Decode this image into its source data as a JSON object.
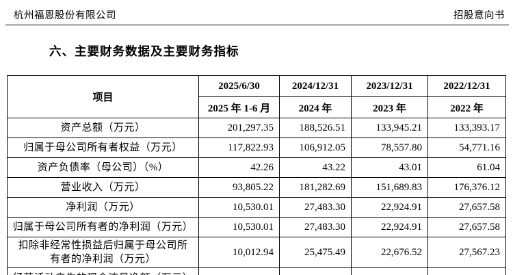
{
  "page_header": {
    "company_name": "杭州福恩股份有限公司",
    "doc_type": "招股意向书"
  },
  "section_title": "六、主要财务数据及主要财务指标",
  "financial_table": {
    "item_column_header": "项目",
    "period_headers": [
      {
        "date": "2025/6/30",
        "period": "2025 年 1-6 月"
      },
      {
        "date": "2024/12/31",
        "period": "2024 年"
      },
      {
        "date": "2023/12/31",
        "period": "2023 年"
      },
      {
        "date": "2022/12/31",
        "period": "2022 年"
      }
    ],
    "rows": [
      {
        "label": "资产总额（万元）",
        "values": [
          "201,297.35",
          "188,526.51",
          "133,945.21",
          "133,393.17"
        ]
      },
      {
        "label": "归属于母公司所有者权益（万元）",
        "values": [
          "117,822.93",
          "106,912.05",
          "78,557.80",
          "54,771.16"
        ]
      },
      {
        "label": "资产负债率（母公司）（%）",
        "values": [
          "42.26",
          "43.22",
          "43.01",
          "61.04"
        ]
      },
      {
        "label": "营业收入（万元）",
        "values": [
          "93,805.22",
          "181,282.69",
          "151,689.83",
          "176,376.12"
        ]
      },
      {
        "label": "净利润（万元）",
        "values": [
          "10,530.01",
          "27,483.30",
          "22,924.91",
          "27,657.58"
        ]
      },
      {
        "label": "归属于母公司所有者的净利润（万元）",
        "values": [
          "10,530.01",
          "27,483.30",
          "22,924.91",
          "27,657.58"
        ]
      },
      {
        "label": "扣除非经常性损益后归属于母公司所\n有者的净利润（万元）",
        "tall": true,
        "values": [
          "10,012.94",
          "25,475.49",
          "22,676.52",
          "27,567.23"
        ]
      },
      {
        "label": "经营活动产生的现金流量净额（万元）",
        "partial": true,
        "values": [
          "",
          "",
          "",
          ""
        ]
      }
    ]
  },
  "colors": {
    "text": "#000000",
    "border": "#000000",
    "background": "#ffffff"
  }
}
